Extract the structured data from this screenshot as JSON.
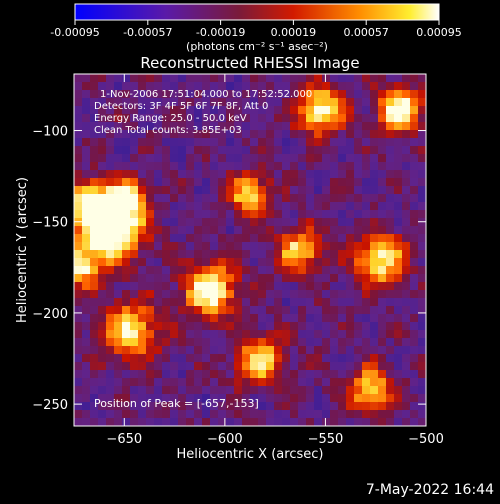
{
  "colorbar": {
    "ticks": [
      "-0.00095",
      "-0.00057",
      "-0.00019",
      "0.00019",
      "0.00057",
      "0.00095"
    ],
    "units_label": "(photons cm⁻² s⁻¹ asec⁻²)",
    "range": [
      -0.00095,
      0.00095
    ]
  },
  "chart_data": {
    "type": "heatmap",
    "title": "Reconstructed RHESSI Image",
    "xlabel": "Heliocentric X (arcsec)",
    "ylabel": "Heliocentric Y (arcsec)",
    "xlim": [
      -675,
      -500
    ],
    "ylim": [
      -262,
      -69
    ],
    "x_ticks": [
      {
        "value": -650,
        "label": "−650"
      },
      {
        "value": -600,
        "label": "−600"
      },
      {
        "value": -550,
        "label": "−550"
      },
      {
        "value": -500,
        "label": "−500"
      }
    ],
    "y_ticks": [
      {
        "value": -100,
        "label": "−100"
      },
      {
        "value": -150,
        "label": "−150"
      },
      {
        "value": -200,
        "label": "−200"
      },
      {
        "value": -250,
        "label": "−250"
      }
    ],
    "annotations": [
      "1-Nov-2006 17:51:04.000 to 17:52:52.000",
      "Detectors: 3F 4F 5F 6F 7F 8F, Att 0",
      "Energy Range: 25.0 - 50.0 keV",
      "Clean     Total counts: 3.85E+03"
    ],
    "peak_label": "Position of Peak = [-657,-153]",
    "peak": [
      -657,
      -153
    ],
    "colormap": "blue-purple-red-yellow-white",
    "grid": false
  },
  "timestamp": "7-May-2022 16:44"
}
